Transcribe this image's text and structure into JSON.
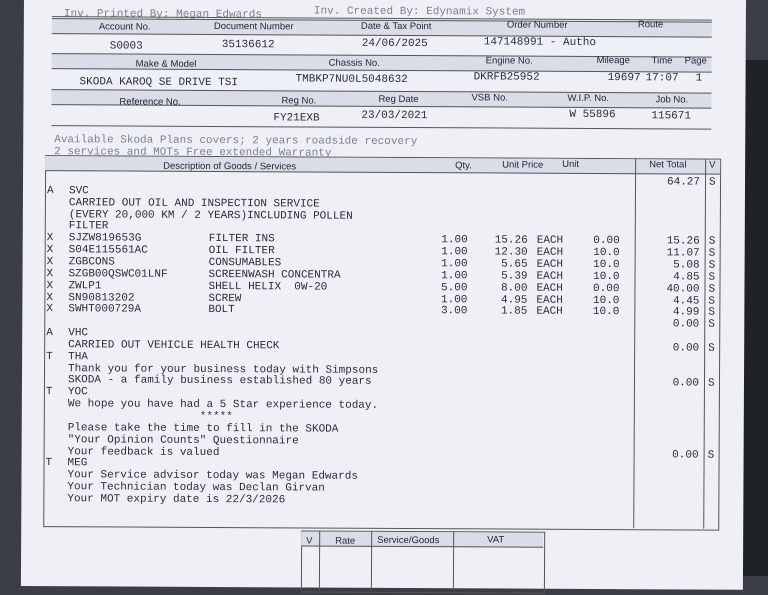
{
  "top": {
    "printed_by": "Inv. Printed By: Megan Edwards",
    "created_by": "Inv. Created By: Edynamix System"
  },
  "header_rows": [
    {
      "labels": [
        "Account No.",
        "Document Number",
        "Date & Tax Point",
        "Order Number",
        "Route"
      ],
      "values": [
        "S0003",
        "35136612",
        "24/06/2025",
        "147148991 - Autho",
        ""
      ]
    },
    {
      "labels": [
        "Make & Model",
        "Chassis No.",
        "Engine No.",
        "Mileage",
        "Time",
        "Page"
      ],
      "values": [
        "SKODA KAROQ SE DRIVE TSI",
        "TMBKP7NU0L5048632",
        "DKRFB25952",
        "19697",
        "17:07",
        "1"
      ]
    },
    {
      "labels": [
        "Reference No.",
        "Reg No.",
        "Reg Date",
        "VSB No.",
        "W.I.P. No.",
        "Job No."
      ],
      "values": [
        "",
        "FY21EXB",
        "23/03/2021",
        "",
        "W 55896",
        "115671"
      ]
    }
  ],
  "notes": [
    "Available Skoda Plans covers; 2 years roadside recovery",
    "2 services and MOTs Free extended Warranty"
  ],
  "items_header": {
    "description": "Description of Goods / Services",
    "qty": "Qty.",
    "unit_price": "Unit Price",
    "unit": "Unit",
    "net_total": "Net Total",
    "v": "V"
  },
  "lines": [
    {
      "code": "",
      "part": "",
      "desc": "",
      "qty": "",
      "price": "",
      "unit": "",
      "disc": "",
      "net": "64.27",
      "v": "S"
    },
    {
      "code": "A",
      "part": "SVC",
      "desc": "",
      "qty": "",
      "price": "",
      "unit": "",
      "disc": "",
      "net": "",
      "v": ""
    },
    {
      "code": "",
      "part": "CARRIED OUT OIL AND INSPECTION SERVICE",
      "desc": "",
      "qty": "",
      "price": "",
      "unit": "",
      "disc": "",
      "net": "",
      "v": ""
    },
    {
      "code": "",
      "part": "(EVERY 20,000 KM / 2 YEARS)INCLUDING POLLEN",
      "desc": "",
      "qty": "",
      "price": "",
      "unit": "",
      "disc": "",
      "net": "",
      "v": ""
    },
    {
      "code": "",
      "part": "FILTER",
      "desc": "",
      "qty": "",
      "price": "",
      "unit": "",
      "disc": "",
      "net": "",
      "v": ""
    },
    {
      "code": "X",
      "part": "SJZW819653G",
      "desc": "FILTER INS",
      "qty": "1.00",
      "price": "15.26",
      "unit": "EACH",
      "disc": "0.00",
      "net": "15.26",
      "v": "S"
    },
    {
      "code": "X",
      "part": "S04E115561AC",
      "desc": "OIL FILTER",
      "qty": "1.00",
      "price": "12.30",
      "unit": "EACH",
      "disc": "10.0",
      "net": "11.07",
      "v": "S"
    },
    {
      "code": "X",
      "part": "ZGBCONS",
      "desc": "CONSUMABLES",
      "qty": "1.00",
      "price": "5.65",
      "unit": "EACH",
      "disc": "10.0",
      "net": "5.08",
      "v": "S"
    },
    {
      "code": "X",
      "part": "SZGB00QSWC01LNF",
      "desc": "SCREENWASH CONCENTRA",
      "qty": "1.00",
      "price": "5.39",
      "unit": "EACH",
      "disc": "10.0",
      "net": "4.85",
      "v": "S"
    },
    {
      "code": "X",
      "part": "ZWLP1",
      "desc": "SHELL HELIX  0W-20",
      "qty": "5.00",
      "price": "8.00",
      "unit": "EACH",
      "disc": "0.00",
      "net": "40.00",
      "v": "S"
    },
    {
      "code": "X",
      "part": "SN90813202",
      "desc": "SCREW",
      "qty": "1.00",
      "price": "4.95",
      "unit": "EACH",
      "disc": "10.0",
      "net": "4.45",
      "v": "S"
    },
    {
      "code": "X",
      "part": "SWHT000729A",
      "desc": "BOLT",
      "qty": "3.00",
      "price": "1.85",
      "unit": "EACH",
      "disc": "10.0",
      "net": "4.99",
      "v": "S"
    },
    {
      "code": "",
      "part": "",
      "desc": "",
      "qty": "",
      "price": "",
      "unit": "",
      "disc": "",
      "net": "0.00",
      "v": "S"
    },
    {
      "code": "A",
      "part": "VHC",
      "desc": "",
      "qty": "",
      "price": "",
      "unit": "",
      "disc": "",
      "net": "",
      "v": ""
    },
    {
      "code": "",
      "part": "CARRIED OUT VEHICLE HEALTH CHECK",
      "desc": "",
      "qty": "",
      "price": "",
      "unit": "",
      "disc": "",
      "net": "0.00",
      "v": "S"
    },
    {
      "code": "T",
      "part": "THA",
      "desc": "",
      "qty": "",
      "price": "",
      "unit": "",
      "disc": "",
      "net": "",
      "v": ""
    },
    {
      "code": "",
      "part": "Thank you for your business today with Simpsons",
      "desc": "",
      "qty": "",
      "price": "",
      "unit": "",
      "disc": "",
      "net": "",
      "v": ""
    },
    {
      "code": "",
      "part": "SKODA - a family business established 80 years",
      "desc": "",
      "qty": "",
      "price": "",
      "unit": "",
      "disc": "",
      "net": "0.00",
      "v": "S"
    },
    {
      "code": "T",
      "part": "YOC",
      "desc": "",
      "qty": "",
      "price": "",
      "unit": "",
      "disc": "",
      "net": "",
      "v": ""
    },
    {
      "code": "",
      "part": "We hope you have had a 5 Star experience today.",
      "desc": "",
      "qty": "",
      "price": "",
      "unit": "",
      "disc": "",
      "net": "",
      "v": ""
    },
    {
      "code": "",
      "part": "                    *****",
      "desc": "",
      "qty": "",
      "price": "",
      "unit": "",
      "disc": "",
      "net": "",
      "v": ""
    },
    {
      "code": "",
      "part": "Please take the time to fill in the SKODA",
      "desc": "",
      "qty": "",
      "price": "",
      "unit": "",
      "disc": "",
      "net": "",
      "v": ""
    },
    {
      "code": "",
      "part": "\"Your Opinion Counts\" Questionnaire",
      "desc": "",
      "qty": "",
      "price": "",
      "unit": "",
      "disc": "",
      "net": "",
      "v": ""
    },
    {
      "code": "",
      "part": "Your feedback is valued",
      "desc": "",
      "qty": "",
      "price": "",
      "unit": "",
      "disc": "",
      "net": "0.00",
      "v": "S"
    },
    {
      "code": "T",
      "part": "MEG",
      "desc": "",
      "qty": "",
      "price": "",
      "unit": "",
      "disc": "",
      "net": "",
      "v": ""
    },
    {
      "code": "",
      "part": "Your Service advisor today was Megan Edwards",
      "desc": "",
      "qty": "",
      "price": "",
      "unit": "",
      "disc": "",
      "net": "",
      "v": ""
    },
    {
      "code": "",
      "part": "Your Technician today was Declan Girvan",
      "desc": "",
      "qty": "",
      "price": "",
      "unit": "",
      "disc": "",
      "net": "",
      "v": ""
    },
    {
      "code": "",
      "part": "Your MOT expiry date is 22/3/2026",
      "desc": "",
      "qty": "",
      "price": "",
      "unit": "",
      "disc": "",
      "net": "",
      "v": ""
    }
  ],
  "vat_table": {
    "v": "V",
    "rate": "Rate",
    "service_goods": "Service/Goods",
    "vat": "VAT"
  }
}
